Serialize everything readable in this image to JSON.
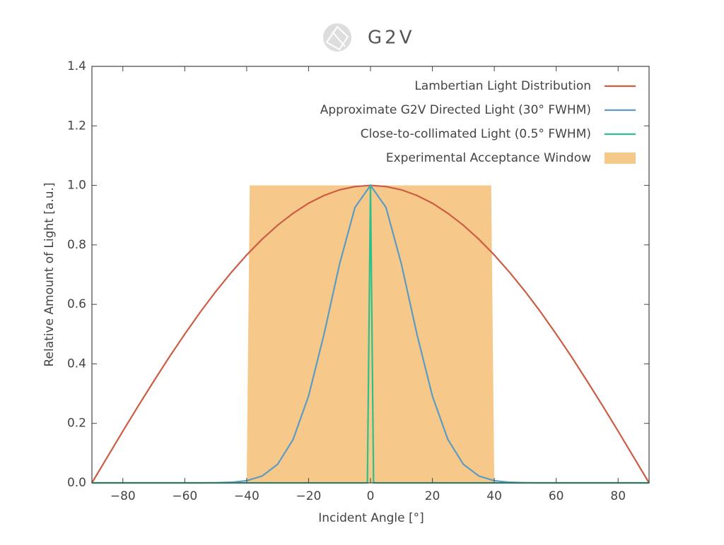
{
  "logo_text": "G2V",
  "chart_data": {
    "type": "line",
    "xlabel": "Incident Angle [°]",
    "ylabel": "Relative Amount of Light [a.u.]",
    "xlim": [
      -90,
      90
    ],
    "ylim": [
      0,
      1.4
    ],
    "xticks": [
      {
        "value": -80,
        "label": "−80"
      },
      {
        "value": -60,
        "label": "−60"
      },
      {
        "value": -40,
        "label": "−40"
      },
      {
        "value": -20,
        "label": "−20"
      },
      0,
      20,
      40,
      60,
      80
    ],
    "yticks": [
      {
        "value": 0,
        "label": "0.0"
      },
      0.2,
      0.4,
      0.6,
      0.8,
      {
        "value": 1,
        "label": "1.0"
      },
      1.2,
      1.4
    ],
    "legend": "upper right",
    "series": [
      {
        "name": "Lambertian Light Distribution",
        "color": "#cd5c45",
        "kind": "line",
        "x": [
          -90,
          -85,
          -80,
          -75,
          -70,
          -65,
          -60,
          -55,
          -50,
          -45,
          -40,
          -35,
          -30,
          -25,
          -20,
          -15,
          -10,
          -5,
          0,
          5,
          10,
          15,
          20,
          25,
          30,
          35,
          40,
          45,
          50,
          55,
          60,
          65,
          70,
          75,
          80,
          85,
          90
        ],
        "values": [
          0,
          0.087,
          0.174,
          0.259,
          0.342,
          0.423,
          0.5,
          0.574,
          0.643,
          0.707,
          0.766,
          0.819,
          0.866,
          0.906,
          0.94,
          0.966,
          0.985,
          0.996,
          1,
          0.996,
          0.985,
          0.966,
          0.94,
          0.906,
          0.866,
          0.819,
          0.766,
          0.707,
          0.643,
          0.574,
          0.5,
          0.423,
          0.342,
          0.259,
          0.174,
          0.087,
          0
        ]
      },
      {
        "name": "Approximate G2V Directed Light (30° FWHM)",
        "color": "#5b9bc4",
        "kind": "line",
        "x": [
          -90,
          -85,
          -80,
          -75,
          -70,
          -65,
          -60,
          -55,
          -50,
          -45,
          -40,
          -35,
          -30,
          -25,
          -20,
          -15,
          -10,
          -5,
          0,
          5,
          10,
          15,
          20,
          25,
          30,
          35,
          40,
          45,
          50,
          55,
          60,
          65,
          70,
          75,
          80,
          85,
          90
        ],
        "values": [
          0,
          0,
          0,
          0,
          0,
          0,
          0,
          0,
          0.0005,
          0.002,
          0.0072,
          0.023,
          0.0625,
          0.146,
          0.292,
          0.5,
          0.735,
          0.926,
          1,
          0.926,
          0.735,
          0.5,
          0.292,
          0.146,
          0.0625,
          0.023,
          0.0072,
          0.002,
          0.0005,
          0,
          0,
          0,
          0,
          0,
          0,
          0,
          0
        ]
      },
      {
        "name": "Close-to-collimated Light (0.5° FWHM)",
        "color": "#2fbf8a",
        "kind": "line",
        "x": [
          -90,
          -1,
          0,
          1,
          90
        ],
        "values": [
          0,
          0,
          1,
          0,
          0
        ]
      },
      {
        "name": "Experimental Acceptance Window",
        "color": "#f6c98a",
        "kind": "area",
        "x": [
          -40,
          -39,
          39,
          40
        ],
        "values": [
          0,
          1,
          1,
          0
        ]
      }
    ]
  }
}
